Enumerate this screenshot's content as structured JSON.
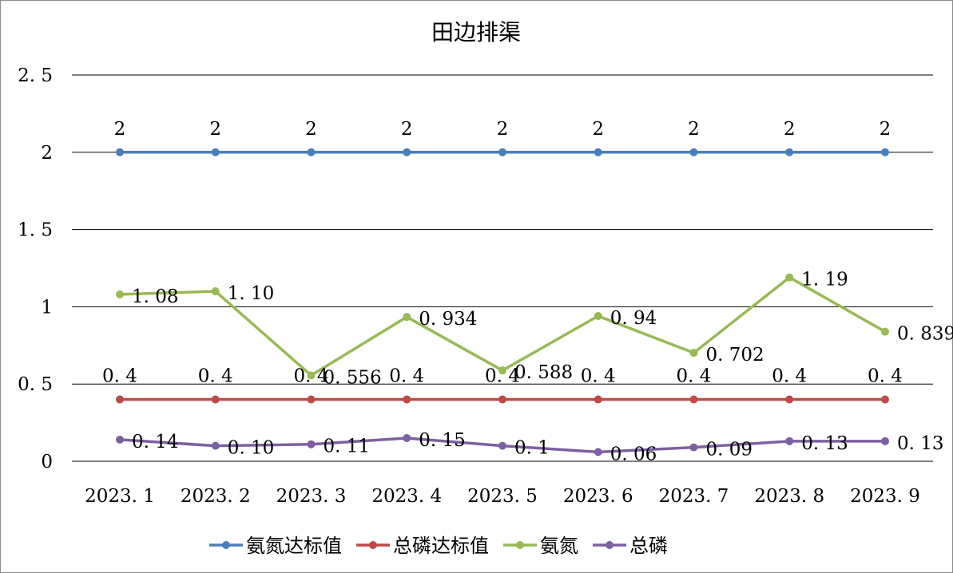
{
  "chart_data": {
    "type": "line",
    "title": "田边排渠",
    "xlabel": "",
    "ylabel": "",
    "ylim": [
      0,
      2.5
    ],
    "yticks": [
      "0",
      "0.5",
      "1",
      "1.5",
      "2",
      "2.5"
    ],
    "yticks_display": [
      "0",
      "0. 5",
      "1",
      "1. 5",
      "2",
      "2. 5"
    ],
    "categories": [
      "2023. 1",
      "2023. 2",
      "2023. 3",
      "2023. 4",
      "2023. 5",
      "2023. 6",
      "2023. 7",
      "2023. 8",
      "2023. 9"
    ],
    "grid": true,
    "legend_position": "bottom",
    "series": [
      {
        "name": "氨氮达标值",
        "color": "#4a7ebb",
        "values": [
          2,
          2,
          2,
          2,
          2,
          2,
          2,
          2,
          2
        ],
        "labels": [
          "2",
          "2",
          "2",
          "2",
          "2",
          "2",
          "2",
          "2",
          "2"
        ]
      },
      {
        "name": "总磷达标值",
        "color": "#be4b48",
        "values": [
          0.4,
          0.4,
          0.4,
          0.4,
          0.4,
          0.4,
          0.4,
          0.4,
          0.4
        ],
        "labels": [
          "0. 4",
          "0. 4",
          "0. 4",
          "0. 4",
          "0. 4",
          "0. 4",
          "0. 4",
          "0. 4",
          "0. 4"
        ]
      },
      {
        "name": "氨氮",
        "color": "#98b954",
        "values": [
          1.08,
          1.1,
          0.556,
          0.934,
          0.588,
          0.94,
          0.702,
          1.19,
          0.839
        ],
        "labels": [
          "1. 08",
          "1. 10",
          "0. 556",
          "0. 934",
          "0. 588",
          "0. 94",
          "0. 702",
          "1. 19",
          "0. 839"
        ]
      },
      {
        "name": "总磷",
        "color": "#7d60a0",
        "values": [
          0.14,
          0.1,
          0.11,
          0.15,
          0.1,
          0.06,
          0.09,
          0.13,
          0.13
        ],
        "labels": [
          "0. 14",
          "0. 10",
          "0. 11",
          "0. 15",
          "0. 1",
          "0. 06",
          "0. 09",
          "0. 13",
          "0. 13"
        ]
      }
    ]
  }
}
